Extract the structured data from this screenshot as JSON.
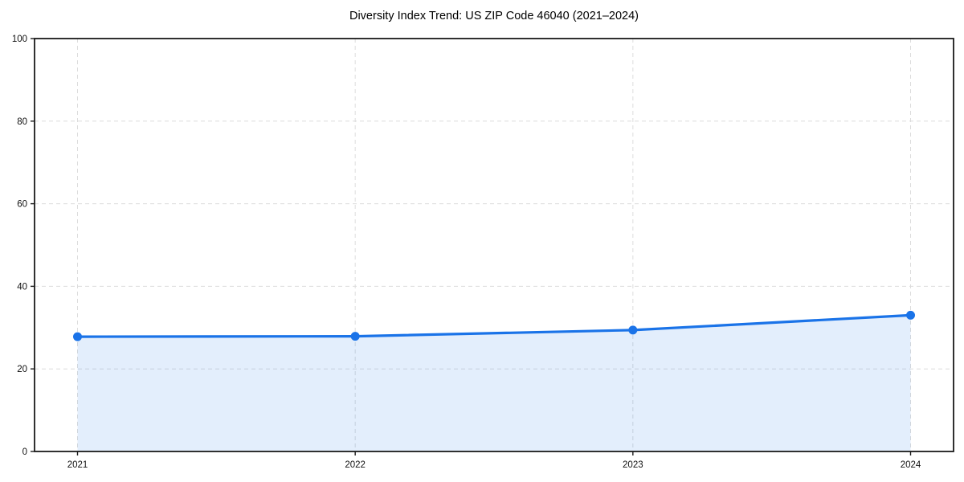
{
  "chart_data": {
    "type": "line",
    "title": "Diversity Index Trend: US ZIP Code 46040 (2021–2024)",
    "x": [
      2021,
      2022,
      2023,
      2024
    ],
    "xticks": [
      "2021",
      "2022",
      "2023",
      "2024"
    ],
    "series": [
      {
        "name": "Diversity Index",
        "values": [
          27.8,
          27.9,
          29.4,
          33.0
        ]
      }
    ],
    "area_fill": true,
    "marker": "circle",
    "xlabel": "",
    "ylabel": "",
    "ylim": [
      0,
      100
    ],
    "yticks": [
      0,
      20,
      40,
      60,
      80,
      100
    ],
    "grid": {
      "visible": true,
      "style": "dashed",
      "axes": "both"
    },
    "legend": "none",
    "colors": {
      "line": "#1a73e8",
      "marker": "#1a73e8",
      "area": "rgba(26,115,232,0.12)",
      "grid": "#dcdcdc",
      "spine": "#1a1a1a",
      "tick_text": "#111111",
      "title_text": "#000000",
      "background": "#ffffff"
    }
  }
}
